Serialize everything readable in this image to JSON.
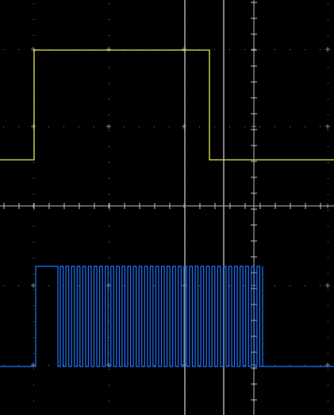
{
  "screen": {
    "background_color": "#000000"
  },
  "graticule": {
    "grid_color": "#8c8c8c",
    "axis_color": "#bdbdbd",
    "dot_color": "#7a7a7a"
  },
  "cursors": {
    "count": 2,
    "color": "#a9a9a9"
  },
  "channels": [
    {
      "label": "",
      "color": "#e6e65a",
      "signal_type": "single-pulse",
      "levels": [
        "low",
        "high",
        "low"
      ]
    },
    {
      "label": "",
      "color": "#1e74ff",
      "signal_type": "pulse-train",
      "levels": [
        "low",
        "high",
        "burst",
        "low"
      ],
      "burst_pulse_count": 36
    }
  ],
  "icons": {
    "crosshair": "plus-marker-icon"
  }
}
